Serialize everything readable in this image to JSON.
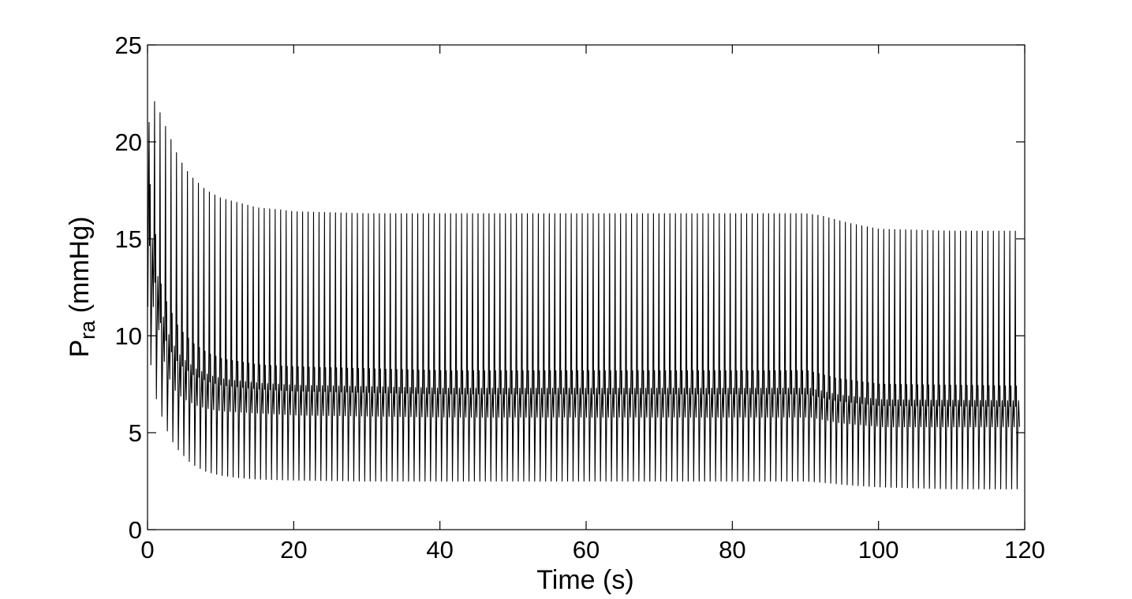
{
  "chart_data": {
    "type": "line",
    "title": "",
    "xlabel": "Time (s)",
    "ylabel": {
      "main": "P",
      "subscript": "ra",
      "unit": " (mmHg)"
    },
    "xlim": [
      0,
      120
    ],
    "ylim": [
      0,
      25
    ],
    "xticks": [
      "0",
      "20",
      "40",
      "60",
      "80",
      "100",
      "120"
    ],
    "yticks": [
      "0",
      "5",
      "10",
      "15",
      "20",
      "25"
    ],
    "grid": false,
    "legend": "none",
    "line_color": "#000000",
    "series": [
      {
        "cycle_period_s": 0.75,
        "upper_envelope": {
          "t": [
            0.5,
            1,
            2,
            3,
            4,
            5,
            6,
            8,
            10,
            12,
            15,
            18,
            20,
            30,
            40,
            60,
            80,
            90,
            92,
            96,
            100,
            110,
            120
          ],
          "p": [
            21.0,
            22.2,
            21.2,
            20.3,
            19.4,
            18.7,
            18.2,
            17.5,
            17.1,
            16.9,
            16.6,
            16.5,
            16.4,
            16.3,
            16.3,
            16.3,
            16.3,
            16.3,
            16.2,
            15.8,
            15.5,
            15.4,
            15.4
          ]
        },
        "lower_envelope": {
          "t": [
            0.5,
            1,
            2,
            3,
            4,
            5,
            6,
            8,
            10,
            12,
            15,
            20,
            30,
            60,
            90,
            92,
            96,
            100,
            110,
            120
          ],
          "p": [
            8.5,
            7.0,
            5.8,
            4.8,
            4.2,
            3.8,
            3.4,
            3.0,
            2.8,
            2.7,
            2.6,
            2.55,
            2.5,
            2.5,
            2.5,
            2.45,
            2.3,
            2.2,
            2.1,
            2.1
          ]
        },
        "mid_band_high": {
          "t": [
            0.5,
            1,
            2,
            3,
            4,
            6,
            8,
            10,
            15,
            20,
            40,
            90,
            94,
            100,
            120
          ],
          "p": [
            17.8,
            13.5,
            12.0,
            11.2,
            10.4,
            9.6,
            9.1,
            8.8,
            8.5,
            8.4,
            8.2,
            8.2,
            7.8,
            7.5,
            7.4
          ]
        },
        "mid_band_low": {
          "t": [
            0.5,
            1,
            2,
            3,
            4,
            6,
            8,
            10,
            15,
            20,
            40,
            90,
            94,
            100,
            120
          ],
          "p": [
            11.5,
            9.5,
            8.0,
            7.2,
            6.8,
            6.4,
            6.2,
            6.1,
            6.0,
            5.9,
            5.8,
            5.8,
            5.5,
            5.3,
            5.3
          ]
        }
      }
    ]
  }
}
